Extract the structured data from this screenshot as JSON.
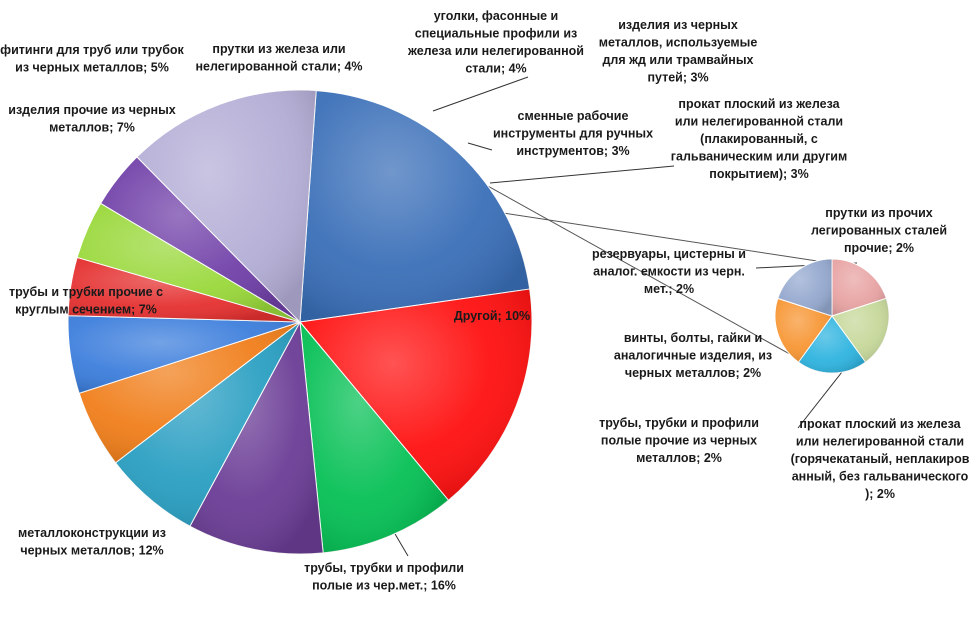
{
  "chart_data": {
    "type": "pie",
    "variant": "bar-of-pie (pie of pie)",
    "main": {
      "slices": [
        {
          "label": "трубы, трубки и профили полые из чер.мет.; 16%",
          "value": 16,
          "color": "#3a6fb8"
        },
        {
          "label": "металлоконструкции из черных металлов; 12%",
          "value": 12,
          "color": "#ff1010"
        },
        {
          "label": "трубы и трубки прочие с круглым сечением; 7%",
          "value": 7,
          "color": "#06c055"
        },
        {
          "label": "изделия прочие из черных металлов; 7%",
          "value": 7,
          "color": "#6b3d96"
        },
        {
          "label": "фитинги для труб или трубок из черных металлов; 5%",
          "value": 5,
          "color": "#2a9fc2"
        },
        {
          "label": "прутки из железа или нелегированной стали; 4%",
          "value": 4,
          "color": "#f07e1a"
        },
        {
          "label": "уголки, фасонные и специальные профили из железа или нелегированной стали; 4%",
          "value": 4,
          "color": "#3c7edc"
        },
        {
          "label": "изделия из черных металлов, используемые для жд или трамвайных путей; 3%",
          "value": 3,
          "color": "#e53030"
        },
        {
          "label": "сменные рабочие инструменты для ручных инструментов; 3%",
          "value": 3,
          "color": "#99d83a"
        },
        {
          "label": "прокат плоский из железа или нелегированной стали (плакированный, с гальваническим или другим покрытием); 3%",
          "value": 3,
          "color": "#7040a8"
        },
        {
          "label": "Другой; 10%",
          "value": 10,
          "color": "#b4aed6"
        }
      ]
    },
    "secondary": {
      "slices": [
        {
          "label": "прутки из прочих легированных сталей прочие; 2%",
          "value": 2,
          "color": "#e8a3a3"
        },
        {
          "label": "винты, болты, гайки и аналогичные изделия, из черных металлов; 2%",
          "value": 2,
          "color": "#c6d89a"
        },
        {
          "label": "трубы, трубки и профили полые прочие из черных металлов; 2%",
          "value": 2,
          "color": "#2fb4e0"
        },
        {
          "label": "прокат плоский из железа или нелегированной стали (горячекатаный, неплакированный, без гальванического); 2%",
          "value": 2,
          "color": "#f79634"
        },
        {
          "label": "резервуары, цистерны и аналог. емкости из черн. мет.; 2%",
          "value": 2,
          "color": "#95a9cf"
        }
      ]
    },
    "labels": [
      {
        "lines": [
          "трубы, трубки и профили",
          "полые из чер.мет.; 16%"
        ]
      },
      {
        "lines": [
          "металлоконструкции из",
          "черных металлов; 12%"
        ]
      },
      {
        "lines": [
          "трубы и трубки прочие  с",
          "круглым сечением; 7%"
        ]
      },
      {
        "lines": [
          "изделия прочие из черных",
          "металлов; 7%"
        ]
      },
      {
        "lines": [
          "фитинги для труб или трубок",
          "из черных металлов; 5%"
        ]
      },
      {
        "lines": [
          "прутки из железа или",
          "нелегированной стали; 4%"
        ]
      },
      {
        "lines": [
          "уголки, фасонные и",
          "специальные профили из",
          "железа или нелегированной",
          "стали; 4%"
        ]
      },
      {
        "lines": [
          "изделия из черных",
          "металлов, используемые",
          "для жд или трамвайных",
          "путей; 3%"
        ]
      },
      {
        "lines": [
          "сменные рабочие",
          "инструменты для ручных",
          "инструментов; 3%"
        ]
      },
      {
        "lines": [
          "прокат плоский из железа",
          "или нелегированной стали",
          "(плакированный, с",
          "гальваническим или другим",
          "покрытием); 3%"
        ]
      },
      {
        "lines": [
          "Другой; 10%"
        ]
      },
      {
        "lines": [
          "прутки из прочих",
          "легированных сталей",
          "прочие; 2%"
        ]
      },
      {
        "lines": [
          "резервуары, цистерны и",
          "аналог. емкости из черн.",
          "мет.; 2%"
        ]
      },
      {
        "lines": [
          "винты, болты, гайки и",
          "аналогичные изделия, из",
          "черных металлов; 2%"
        ]
      },
      {
        "lines": [
          "трубы, трубки и профили",
          "полые прочие  из черных",
          "металлов; 2%"
        ]
      },
      {
        "lines": [
          "прокат плоский из железа",
          "или нелегированной стали",
          "(горячекатаный, неплакиров",
          "анный, без гальванического",
          "); 2%"
        ]
      }
    ]
  }
}
